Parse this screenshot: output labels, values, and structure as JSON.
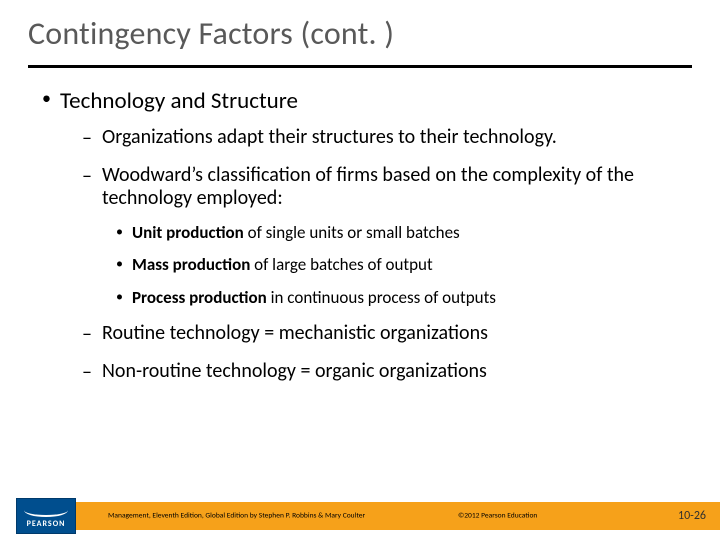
{
  "title": "Contingency Factors (cont. )",
  "colors": {
    "title": "#595959",
    "rule": "#000000",
    "footer_bar": "#f6a11a",
    "logo_bg": "#004e8e",
    "text": "#000000",
    "background": "#ffffff"
  },
  "typography": {
    "title_fontsize": 32,
    "lvl1_fontsize": 23,
    "lvl2_fontsize": 20,
    "lvl3_fontsize": 17,
    "footer_fontsize": 7.5,
    "pagenum_fontsize": 12,
    "font_family": "Calibri"
  },
  "bullets": {
    "lvl1": [
      {
        "text": "Technology and Structure",
        "lvl2": [
          {
            "text": "Organizations adapt their structures to their technology."
          },
          {
            "text": "Woodward’s classification of firms based on the complexity of the technology employed:",
            "lvl3": [
              {
                "bold": "Unit production",
                "rest": " of single units or small batches"
              },
              {
                "bold": "Mass production",
                "rest": " of large batches of output"
              },
              {
                "bold": "Process production",
                "rest": " in continuous process of outputs"
              }
            ]
          },
          {
            "text": "Routine technology = mechanistic organizations"
          },
          {
            "text": "Non-routine technology = organic organizations"
          }
        ]
      }
    ]
  },
  "footer": {
    "book": "Management, Eleventh Edition, Global Edition by Stephen P. Robbins & Mary Coulter",
    "copyright": "©2012 Pearson Education",
    "page": "10-26",
    "logo_text": "PEARSON"
  }
}
